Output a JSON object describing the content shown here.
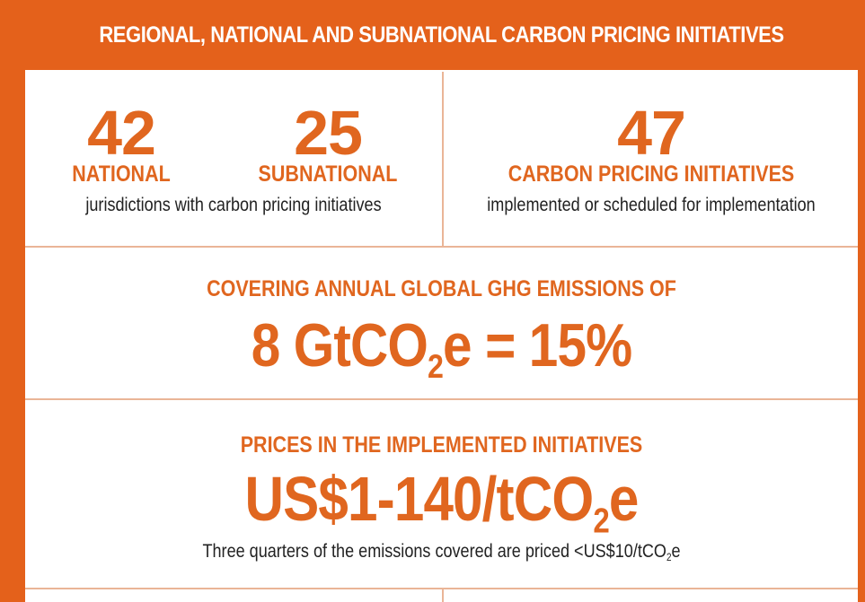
{
  "header": {
    "title": "REGIONAL, NATIONAL AND SUBNATIONAL CARBON PRICING INITIATIVES"
  },
  "jurisdictions": {
    "national_count": 42,
    "national_label": "NATIONAL",
    "subnational_count": 25,
    "subnational_label": "SUBNATIONAL",
    "caption": "jurisdictions with carbon pricing initiatives"
  },
  "initiatives": {
    "count": 47,
    "label": "CARBON PRICING INITIATIVES",
    "caption": "implemented or scheduled for implementation"
  },
  "coverage": {
    "heading": "COVERING ANNUAL GLOBAL GHG EMISSIONS OF",
    "value_main": "8 GtCO",
    "value_sub": "2",
    "value_rest": "e = 15%"
  },
  "prices": {
    "heading": "PRICES IN THE IMPLEMENTED INITIATIVES",
    "value_main": "US$1-140/tCO",
    "value_sub": "2",
    "value_rest": "e",
    "note_main": "Three quarters of the emissions covered are priced <US$10/tCO",
    "note_sub": "2",
    "note_rest": "e"
  }
}
